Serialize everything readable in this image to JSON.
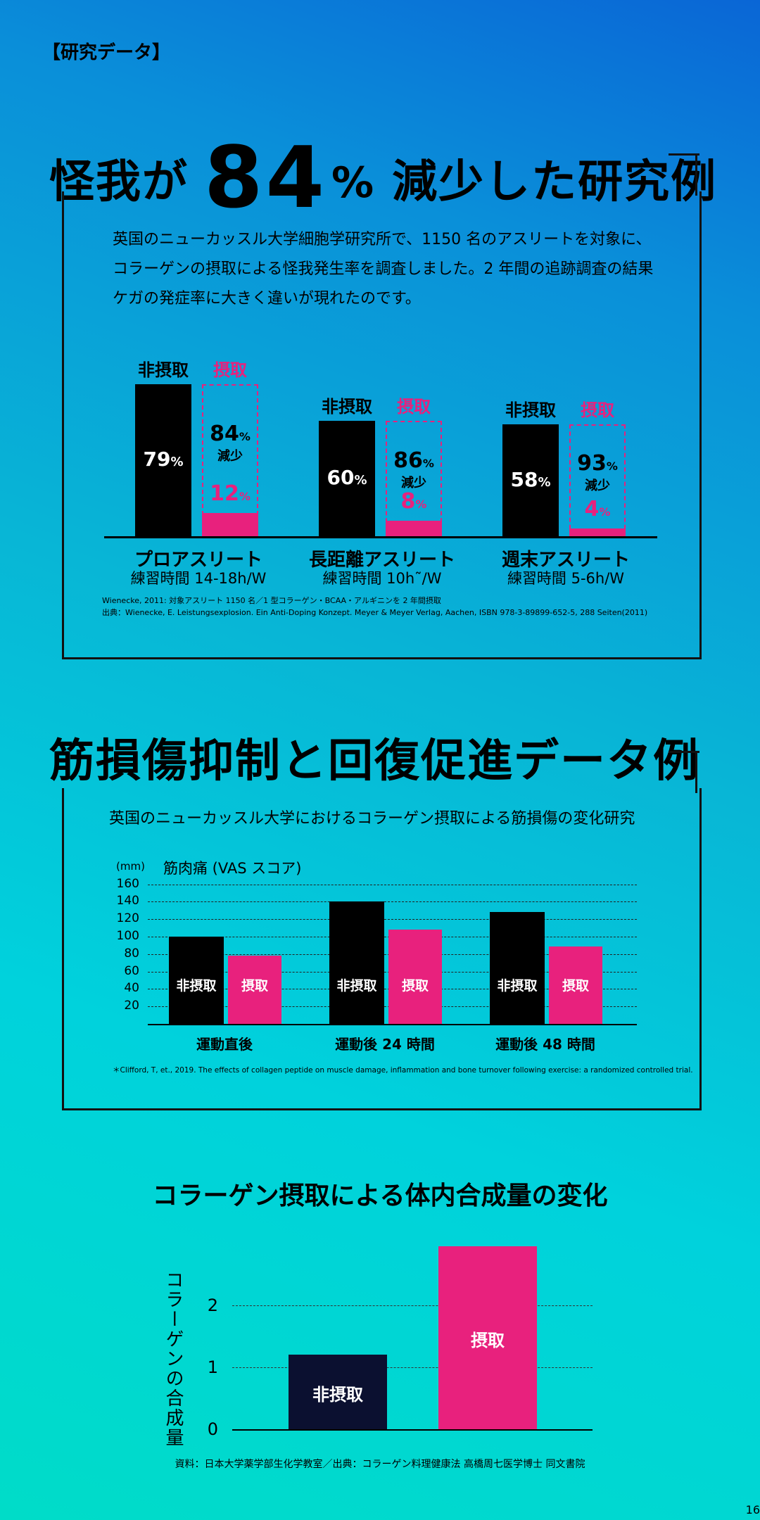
{
  "section1": {
    "tag": "【研究データ】",
    "title_pre": "怪我が",
    "title_num": "84",
    "title_pct": "%",
    "title_post": "減少した研究例",
    "intro": [
      "英国のニューカッスル大学細胞学研究所で、1150 名のアスリートを対象に、",
      "コラーゲンの摂取による怪我発生率を調査しました。2 年間の追跡調査の結果",
      "ケガの発症率に大きく違いが現れたのです。"
    ],
    "ref1": "Wienecke, 2011: 対象アスリート 1150 名／1 型コラーゲン・BCAA・アルギニンを 2 年間摂取",
    "ref2": "出典：Wienecke, E. Leistungsexplosion. Ein Anti-Doping Konzept. Meyer & Meyer Verlag, Aachen, ISBN 978-3-89899-652-5, 288 Seiten(2011)"
  },
  "chart_data": [
    {
      "type": "bar",
      "series": [
        {
          "name": "非摂取",
          "values": [
            79,
            60,
            58
          ]
        },
        {
          "name": "摂取",
          "values": [
            12,
            8,
            4
          ]
        }
      ],
      "categories": [
        "プロアスリート",
        "長距離アスリート",
        "週末アスリート"
      ],
      "subcategories": [
        "練習時間 14-18h/W",
        "練習時間 10h˜/W",
        "練習時間 5-6h/W"
      ],
      "reduction": [
        "84",
        "86",
        "93"
      ],
      "reduction_unit": "%",
      "reduction_label": "減少",
      "value_unit": "%",
      "colors": {
        "non": "#000000",
        "take": "#e8217d"
      }
    },
    {
      "type": "bar",
      "title": "筋肉痛 (VAS スコア)",
      "ylabel": "(mm)",
      "yticks": [
        20,
        40,
        60,
        80,
        100,
        120,
        140,
        160
      ],
      "ylim": [
        0,
        170
      ],
      "categories": [
        "運動直後",
        "運動後 24 時間",
        "運動後 48 時間"
      ],
      "series": [
        {
          "name": "非摂取",
          "values": [
            100,
            140,
            128
          ]
        },
        {
          "name": "摂取",
          "values": [
            78,
            108,
            89
          ]
        }
      ],
      "grid": true
    },
    {
      "type": "bar",
      "title": "コラーゲン摂取による体内合成量の変化",
      "ylabel": "コラーゲンの合成量",
      "yticks": [
        0,
        1,
        2
      ],
      "ylim": [
        0,
        3
      ],
      "categories": [
        "非摂取",
        "摂取"
      ],
      "values": [
        1.2,
        2.95
      ]
    }
  ],
  "section2": {
    "title": "筋損傷抑制と回復促進データ例",
    "desc": "英国のニューカッスル大学におけるコラーゲン摂取による筋損傷の変化研究",
    "ref": "＊Clifford, T, et., 2019. The effects of collagen peptide on muscle damage, inflammation and bone turnover following exercise: a randomized controlled trial."
  },
  "section3": {
    "source": "資料：日本大学薬学部生化学教室／出典：コラーゲン料理健康法 高橋周七医学博士 同文書院"
  },
  "page_number": "16"
}
